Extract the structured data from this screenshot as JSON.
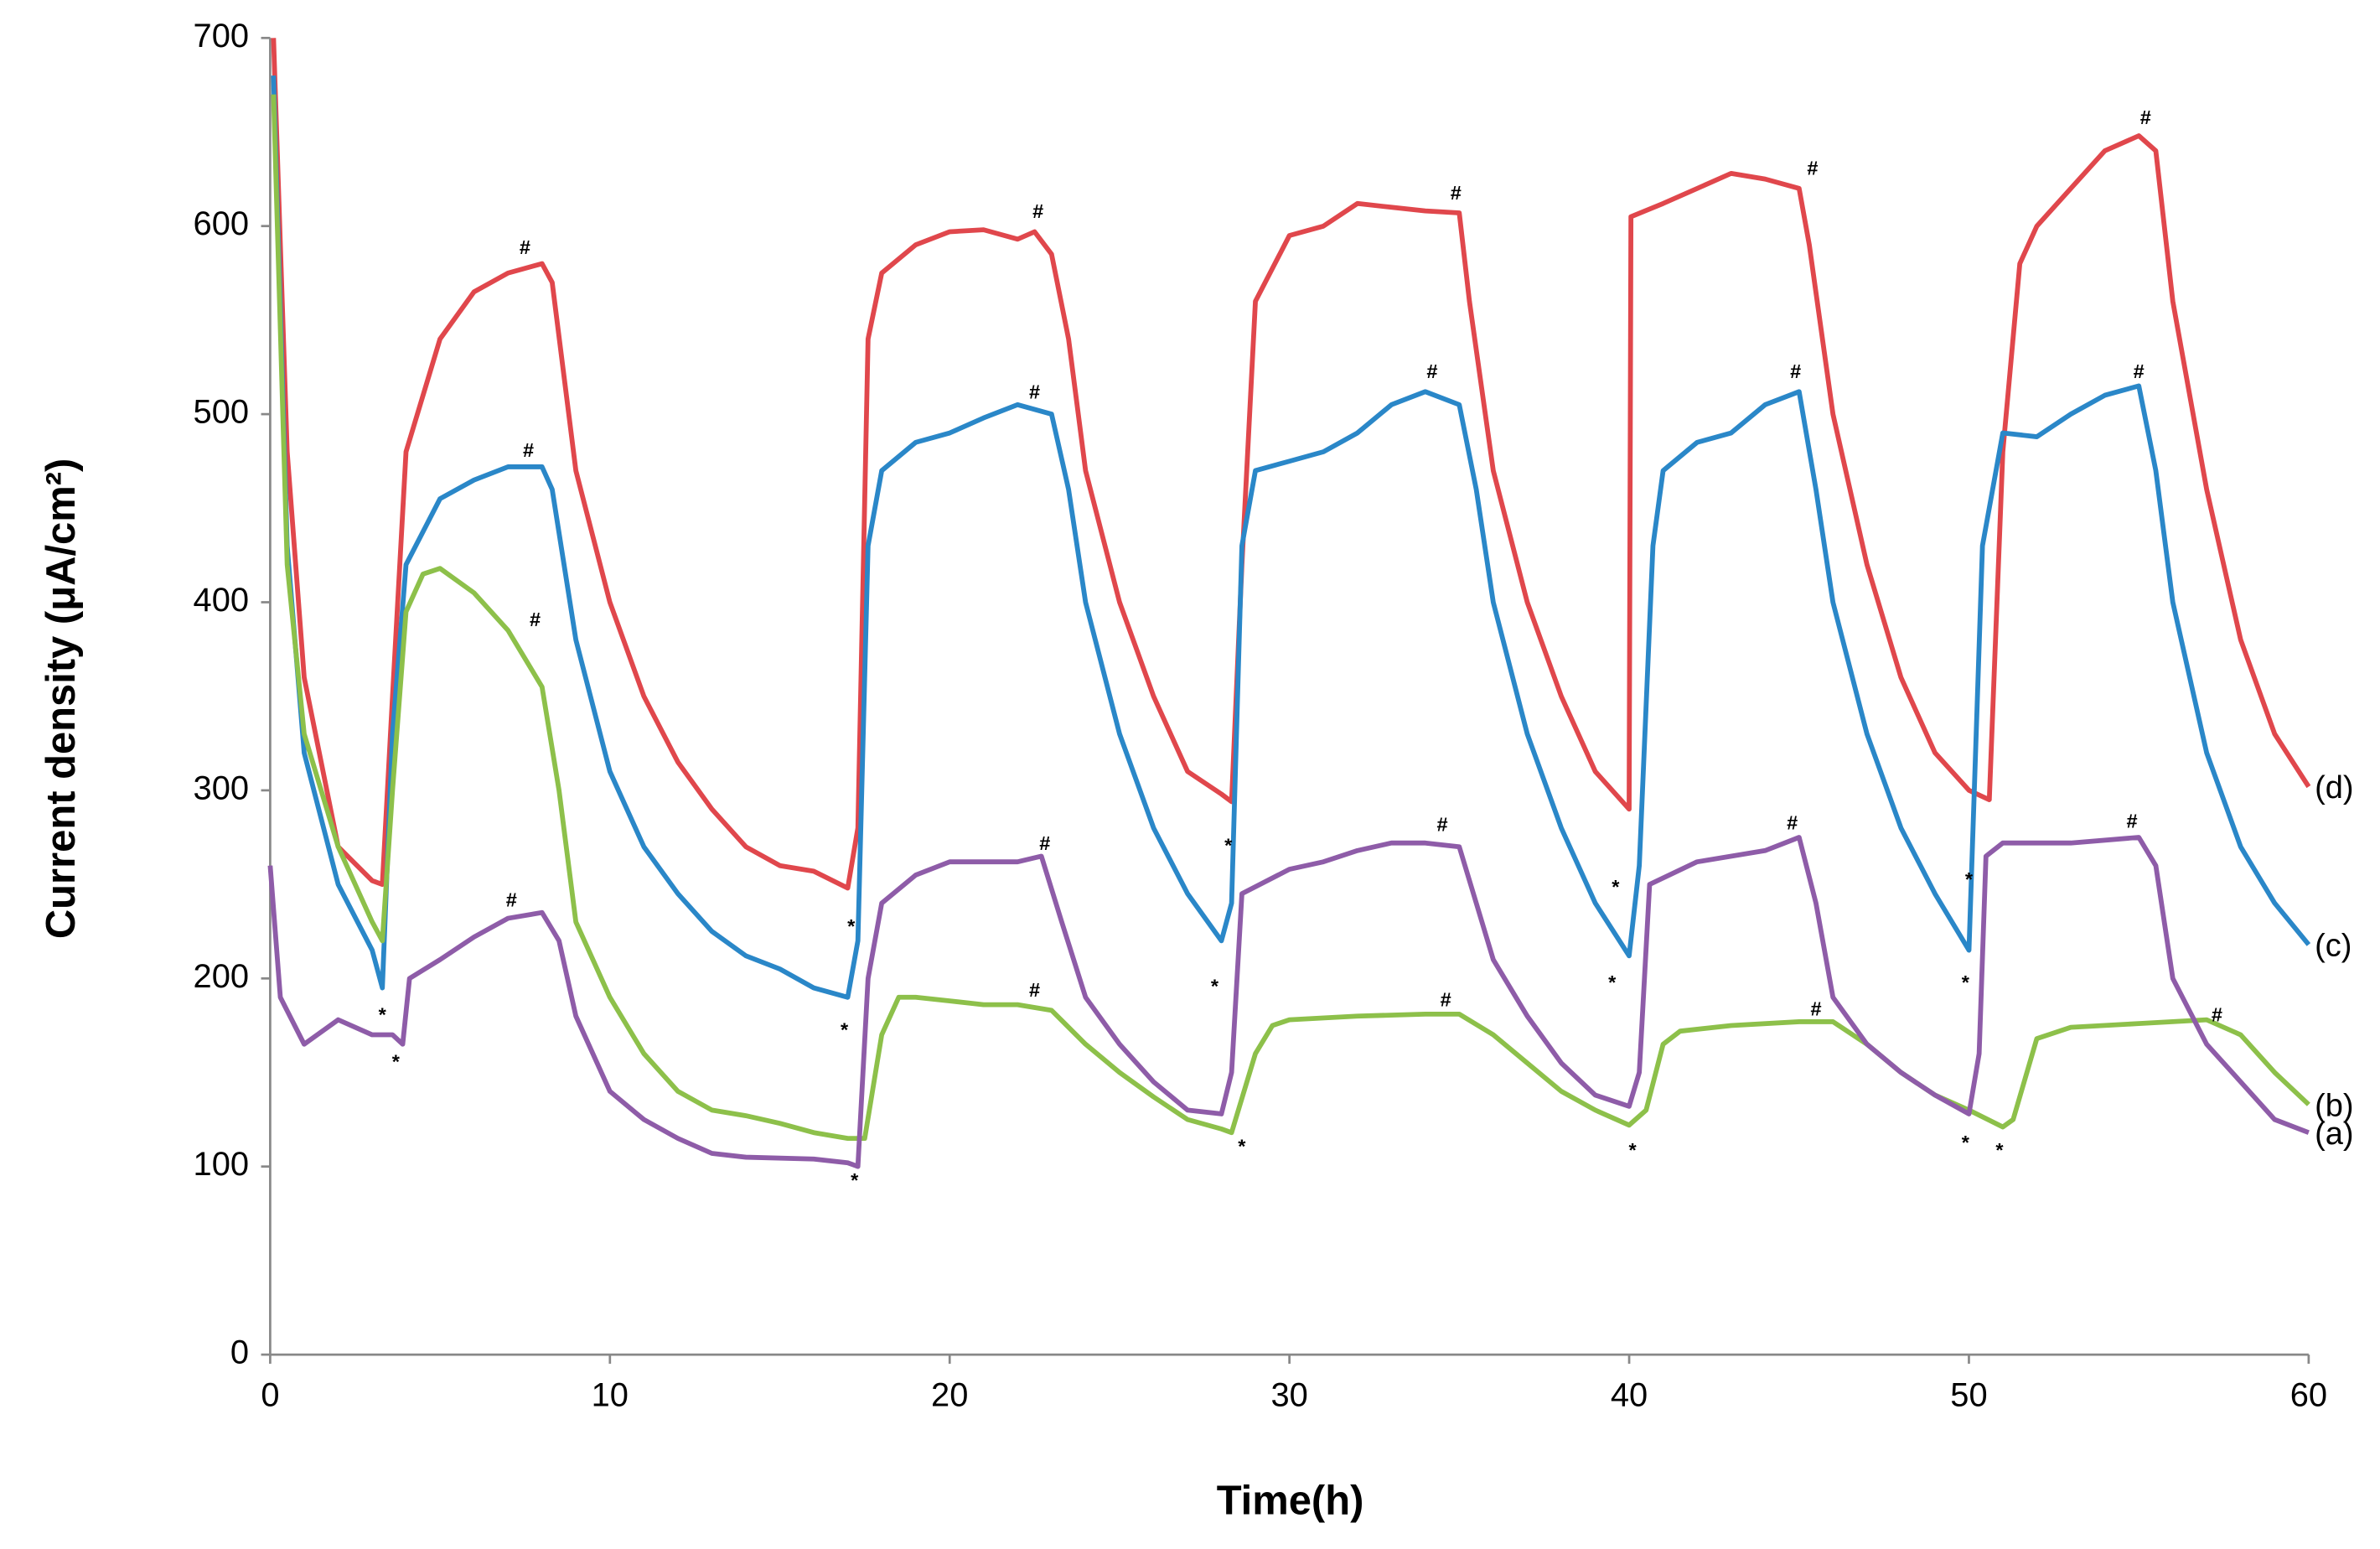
{
  "chart_data": {
    "type": "line",
    "xlabel": "Time(h)",
    "ylabel": "Current density (μA/cm²)",
    "xlim": [
      0,
      60
    ],
    "xticks": [
      0,
      10,
      20,
      30,
      40,
      50,
      60
    ],
    "ylim": [
      0,
      700
    ],
    "yticks": [
      0,
      100,
      200,
      300,
      400,
      500,
      600,
      700
    ],
    "series": [
      {
        "name": "(d)",
        "color": "#e0474c",
        "x": [
          0.1,
          0.5,
          1,
          2,
          3,
          3.3,
          3.6,
          4,
          5,
          6,
          7,
          8,
          8.3,
          9,
          10,
          11,
          12,
          13,
          14,
          15,
          16,
          17,
          17.3,
          17.6,
          18,
          19,
          20,
          21,
          22,
          22.5,
          23,
          23.5,
          24,
          25,
          26,
          27,
          28,
          28.3,
          28.6,
          29,
          30,
          31,
          32,
          33,
          34,
          35,
          35.3,
          36,
          37,
          38,
          39,
          40,
          40.05,
          41,
          42,
          43,
          44,
          45,
          45.3,
          46,
          47,
          48,
          49,
          50,
          50.6,
          51,
          51.5,
          52,
          53,
          54,
          55,
          55.5,
          56,
          57,
          58,
          59,
          60
        ],
        "values": [
          700,
          480,
          360,
          270,
          252,
          250,
          350,
          480,
          540,
          565,
          575,
          580,
          570,
          470,
          400,
          350,
          315,
          290,
          270,
          260,
          257,
          248,
          280,
          540,
          575,
          590,
          597,
          598,
          593,
          597,
          585,
          540,
          470,
          400,
          350,
          310,
          298,
          294,
          420,
          560,
          595,
          600,
          612,
          610,
          608,
          607,
          560,
          470,
          400,
          350,
          310,
          290,
          605,
          612,
          620,
          628,
          625,
          620,
          590,
          500,
          420,
          360,
          320,
          300,
          295,
          480,
          580,
          600,
          620,
          640,
          648,
          640,
          560,
          460,
          380,
          330,
          302
        ]
      },
      {
        "name": "(c)",
        "color": "#2a87c8",
        "x": [
          0.1,
          0.5,
          1,
          2,
          3,
          3.3,
          3.6,
          4,
          5,
          6,
          7,
          8,
          8.3,
          9,
          10,
          11,
          12,
          13,
          14,
          15,
          16,
          17,
          17.3,
          17.6,
          18,
          19,
          20,
          21,
          22,
          23,
          23.5,
          24,
          25,
          26,
          27,
          28,
          28.3,
          28.6,
          29,
          30,
          31,
          32,
          33,
          34,
          35,
          35.5,
          36,
          37,
          38,
          39,
          40,
          40.3,
          40.7,
          41,
          42,
          43,
          44,
          45,
          45.5,
          46,
          47,
          48,
          49,
          50,
          50.4,
          51,
          52,
          53,
          54,
          55,
          55.5,
          56,
          57,
          58,
          59,
          60
        ],
        "values": [
          680,
          430,
          320,
          250,
          215,
          195,
          330,
          420,
          455,
          465,
          472,
          472,
          460,
          380,
          310,
          270,
          245,
          225,
          212,
          205,
          195,
          190,
          220,
          430,
          470,
          485,
          490,
          498,
          505,
          500,
          460,
          400,
          330,
          280,
          245,
          220,
          240,
          430,
          470,
          475,
          480,
          490,
          505,
          512,
          505,
          460,
          400,
          330,
          280,
          240,
          212,
          260,
          430,
          470,
          485,
          490,
          505,
          512,
          460,
          400,
          330,
          280,
          245,
          215,
          430,
          490,
          488,
          500,
          510,
          515,
          470,
          400,
          320,
          270,
          240,
          218
        ]
      },
      {
        "name": "(b)",
        "color": "#8dc04a",
        "x": [
          0.1,
          0.5,
          1,
          2,
          3,
          3.3,
          3.6,
          4,
          4.5,
          5,
          6,
          7,
          8,
          8.5,
          9,
          10,
          11,
          12,
          13,
          14,
          15,
          16,
          17,
          17.5,
          18,
          18.5,
          19,
          20,
          21,
          22,
          23,
          24,
          25,
          26,
          27,
          28,
          28.3,
          29,
          29.5,
          30,
          32,
          34,
          35,
          36,
          37,
          38,
          39,
          40,
          40.5,
          41,
          41.5,
          43,
          45,
          46,
          47,
          48,
          49,
          50,
          51,
          51.3,
          52,
          53,
          55,
          57,
          58,
          59,
          60
        ],
        "values": [
          670,
          420,
          330,
          270,
          230,
          220,
          300,
          395,
          415,
          418,
          405,
          385,
          355,
          300,
          230,
          190,
          160,
          140,
          130,
          127,
          123,
          118,
          115,
          115,
          170,
          190,
          190,
          188,
          186,
          186,
          183,
          165,
          150,
          137,
          125,
          120,
          118,
          160,
          175,
          178,
          180,
          181,
          181,
          170,
          155,
          140,
          130,
          122,
          130,
          165,
          172,
          175,
          177,
          177,
          165,
          150,
          138,
          130,
          121,
          125,
          168,
          174,
          176,
          178,
          170,
          150,
          133
        ]
      },
      {
        "name": "(a)",
        "color": "#8e5ca8",
        "x": [
          0,
          0.3,
          1,
          2,
          3,
          3.6,
          3.9,
          4.1,
          5,
          6,
          7,
          8,
          8.5,
          9,
          10,
          11,
          12,
          13,
          14,
          16,
          17,
          17.3,
          17.6,
          18,
          19,
          20,
          21,
          22,
          22.7,
          23.3,
          24,
          25,
          26,
          27,
          28,
          28.3,
          28.6,
          30,
          31,
          32,
          33,
          34,
          35,
          35.5,
          36,
          37,
          38,
          39,
          40,
          40.3,
          40.6,
          42,
          44,
          45,
          45.5,
          46,
          47,
          48,
          49,
          50,
          50.3,
          50.5,
          51,
          53,
          55,
          55.5,
          56,
          57,
          58,
          59,
          60
        ],
        "values": [
          260,
          190,
          165,
          178,
          170,
          170,
          165,
          200,
          210,
          222,
          232,
          235,
          220,
          180,
          140,
          125,
          115,
          107,
          105,
          104,
          102,
          100,
          200,
          240,
          255,
          262,
          262,
          262,
          265,
          230,
          190,
          165,
          145,
          130,
          128,
          150,
          245,
          258,
          262,
          268,
          272,
          272,
          270,
          240,
          210,
          180,
          155,
          138,
          132,
          150,
          250,
          262,
          268,
          275,
          240,
          190,
          165,
          150,
          138,
          128,
          160,
          265,
          272,
          272,
          275,
          260,
          200,
          165,
          145,
          125,
          118
        ]
      }
    ],
    "annotations": [
      {
        "text": "#",
        "x": 7.5,
        "y": 588
      },
      {
        "text": "#",
        "x": 22.6,
        "y": 607
      },
      {
        "text": "#",
        "x": 34.9,
        "y": 617
      },
      {
        "text": "#",
        "x": 45.4,
        "y": 630
      },
      {
        "text": "#",
        "x": 55.2,
        "y": 657
      },
      {
        "text": "#",
        "x": 7.6,
        "y": 480
      },
      {
        "text": "#",
        "x": 22.5,
        "y": 511
      },
      {
        "text": "#",
        "x": 34.2,
        "y": 522
      },
      {
        "text": "#",
        "x": 44.9,
        "y": 522
      },
      {
        "text": "#",
        "x": 55,
        "y": 522
      },
      {
        "text": "#",
        "x": 7.8,
        "y": 390
      },
      {
        "text": "#",
        "x": 22.5,
        "y": 193
      },
      {
        "text": "#",
        "x": 34.6,
        "y": 188
      },
      {
        "text": "#",
        "x": 45.5,
        "y": 183
      },
      {
        "text": "#",
        "x": 57.3,
        "y": 180
      },
      {
        "text": "#",
        "x": 7.1,
        "y": 241
      },
      {
        "text": "#",
        "x": 22.8,
        "y": 271
      },
      {
        "text": "#",
        "x": 34.5,
        "y": 281
      },
      {
        "text": "#",
        "x": 44.8,
        "y": 282
      },
      {
        "text": "#",
        "x": 54.8,
        "y": 283
      },
      {
        "text": "*",
        "x": 3.3,
        "y": 180
      },
      {
        "text": "*",
        "x": 3.7,
        "y": 155
      },
      {
        "text": "*",
        "x": 17.1,
        "y": 227
      },
      {
        "text": "*",
        "x": 16.9,
        "y": 172
      },
      {
        "text": "*",
        "x": 17.2,
        "y": 92
      },
      {
        "text": "*",
        "x": 28.2,
        "y": 270
      },
      {
        "text": "*",
        "x": 27.8,
        "y": 195
      },
      {
        "text": "*",
        "x": 28.6,
        "y": 110
      },
      {
        "text": "*",
        "x": 39.6,
        "y": 248
      },
      {
        "text": "*",
        "x": 39.5,
        "y": 197
      },
      {
        "text": "*",
        "x": 40.1,
        "y": 108
      },
      {
        "text": "*",
        "x": 50,
        "y": 252
      },
      {
        "text": "*",
        "x": 49.9,
        "y": 197
      },
      {
        "text": "*",
        "x": 49.9,
        "y": 112
      },
      {
        "text": "*",
        "x": 50.9,
        "y": 108
      }
    ]
  }
}
